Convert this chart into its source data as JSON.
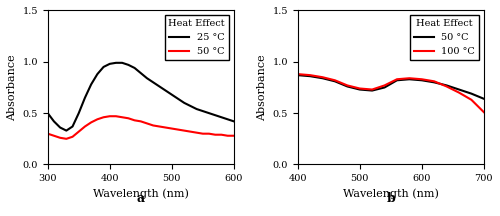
{
  "panel_a": {
    "title": "a",
    "xlabel": "Wavelength (nm)",
    "ylabel": "Absorbance",
    "xlim": [
      300,
      600
    ],
    "ylim": [
      0.0,
      1.5
    ],
    "yticks": [
      0.0,
      0.5,
      1.0,
      1.5
    ],
    "xticks": [
      300,
      400,
      500,
      600
    ],
    "legend_title": "Heat Effect",
    "legend_entries": [
      "25 °C",
      "50 °C"
    ],
    "line_colors": [
      "black",
      "red"
    ],
    "curve1_x": [
      300,
      310,
      320,
      330,
      340,
      350,
      360,
      370,
      380,
      390,
      400,
      410,
      420,
      430,
      440,
      450,
      460,
      470,
      480,
      490,
      500,
      510,
      520,
      530,
      540,
      550,
      560,
      570,
      580,
      590,
      600
    ],
    "curve1_y": [
      0.5,
      0.42,
      0.36,
      0.33,
      0.37,
      0.5,
      0.65,
      0.78,
      0.88,
      0.95,
      0.98,
      0.99,
      0.99,
      0.97,
      0.94,
      0.89,
      0.84,
      0.8,
      0.76,
      0.72,
      0.68,
      0.64,
      0.6,
      0.57,
      0.54,
      0.52,
      0.5,
      0.48,
      0.46,
      0.44,
      0.42
    ],
    "curve2_x": [
      300,
      310,
      320,
      330,
      340,
      350,
      360,
      370,
      380,
      390,
      400,
      410,
      420,
      430,
      440,
      450,
      460,
      470,
      480,
      490,
      500,
      510,
      520,
      530,
      540,
      550,
      560,
      570,
      580,
      590,
      600
    ],
    "curve2_y": [
      0.3,
      0.28,
      0.26,
      0.25,
      0.27,
      0.32,
      0.37,
      0.41,
      0.44,
      0.46,
      0.47,
      0.47,
      0.46,
      0.45,
      0.43,
      0.42,
      0.4,
      0.38,
      0.37,
      0.36,
      0.35,
      0.34,
      0.33,
      0.32,
      0.31,
      0.3,
      0.3,
      0.29,
      0.29,
      0.28,
      0.28
    ]
  },
  "panel_b": {
    "title": "b",
    "xlabel": "Wavelength (nm)",
    "ylabel": "Absorbance",
    "xlim": [
      400,
      700
    ],
    "ylim": [
      0.0,
      1.5
    ],
    "yticks": [
      0.0,
      0.5,
      1.0,
      1.5
    ],
    "xticks": [
      400,
      500,
      600,
      700
    ],
    "legend_title": "Heat Effect",
    "legend_entries": [
      "50 °C",
      "100 °C"
    ],
    "line_colors": [
      "black",
      "red"
    ],
    "curve1_x": [
      400,
      420,
      440,
      460,
      480,
      500,
      520,
      540,
      560,
      580,
      600,
      620,
      640,
      660,
      680,
      700
    ],
    "curve1_y": [
      0.87,
      0.86,
      0.84,
      0.81,
      0.76,
      0.73,
      0.72,
      0.75,
      0.82,
      0.83,
      0.82,
      0.8,
      0.77,
      0.73,
      0.69,
      0.64
    ],
    "curve2_x": [
      400,
      420,
      440,
      460,
      480,
      500,
      520,
      540,
      560,
      580,
      600,
      620,
      640,
      660,
      680,
      700
    ],
    "curve2_y": [
      0.88,
      0.87,
      0.85,
      0.82,
      0.77,
      0.74,
      0.73,
      0.77,
      0.83,
      0.84,
      0.83,
      0.81,
      0.76,
      0.7,
      0.63,
      0.51
    ]
  },
  "fig_bg": "#ffffff",
  "axes_bg": "#ffffff",
  "linewidth": 1.5,
  "fontsize_label": 8,
  "fontsize_tick": 7,
  "fontsize_legend": 7,
  "fontsize_title": 9
}
